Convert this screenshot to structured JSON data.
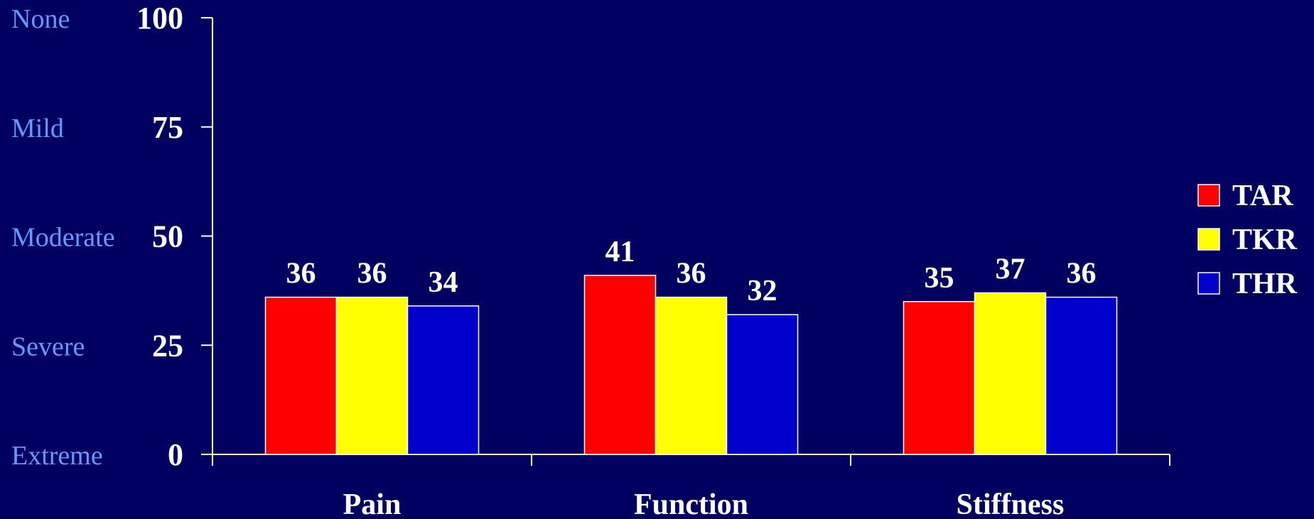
{
  "chart_data": {
    "type": "bar",
    "title": "",
    "xlabel": "",
    "ylabel": "",
    "ylim": [
      0,
      100
    ],
    "yticks": [
      0,
      25,
      50,
      75,
      100
    ],
    "severity_labels": [
      {
        "value": 100,
        "label": "None"
      },
      {
        "value": 75,
        "label": "Mild"
      },
      {
        "value": 50,
        "label": "Moderate"
      },
      {
        "value": 25,
        "label": "Severe"
      },
      {
        "value": 0,
        "label": "Extreme"
      }
    ],
    "categories": [
      "Pain",
      "Function",
      "Stiffness"
    ],
    "series": [
      {
        "name": "TAR",
        "color": "#ff0000",
        "values": [
          36,
          41,
          35
        ]
      },
      {
        "name": "TKR",
        "color": "#ffff00",
        "values": [
          36,
          36,
          37
        ]
      },
      {
        "name": "THR",
        "color": "#0000cc",
        "values": [
          34,
          32,
          36
        ]
      }
    ],
    "data_labels": true,
    "grid": false,
    "legend": "right"
  }
}
